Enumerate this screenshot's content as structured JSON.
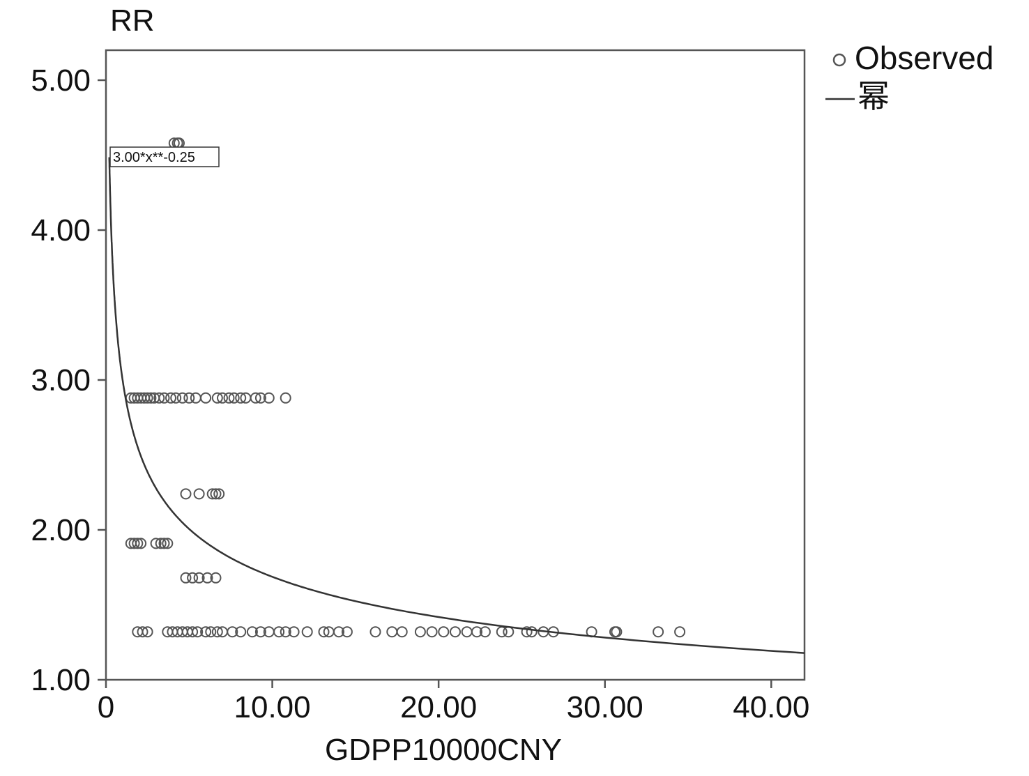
{
  "chart_data": {
    "type": "scatter",
    "title": "",
    "xlabel": "GDPP10000CNY",
    "ylabel": "RR",
    "xlim": [
      0,
      42
    ],
    "ylim": [
      1.0,
      5.2
    ],
    "x_ticks": [
      0,
      10,
      20,
      30,
      40
    ],
    "x_tick_labels": [
      "0",
      "10.00",
      "20.00",
      "30.00",
      "40.00"
    ],
    "y_ticks": [
      1,
      2,
      3,
      4,
      5
    ],
    "y_tick_labels": [
      "1.00",
      "2.00",
      "3.00",
      "4.00",
      "5.00"
    ],
    "grid": false,
    "legend_position": "outside-top-right",
    "legend": [
      {
        "label": "Observed",
        "marker": "circle"
      },
      {
        "label": "幂",
        "marker": "line"
      }
    ],
    "annotation": "3.00*x**-0.25",
    "fit": {
      "a": 3.0,
      "b": -0.25,
      "x_range": [
        0.2,
        42
      ]
    },
    "colors": {
      "marker": "#555555",
      "curve": "#333333",
      "frame": "#555555"
    },
    "series": [
      {
        "name": "Observed",
        "points": [
          [
            4.1,
            4.58
          ],
          [
            4.3,
            4.58
          ],
          [
            4.4,
            4.58
          ],
          [
            1.5,
            2.88
          ],
          [
            1.7,
            2.88
          ],
          [
            1.9,
            2.88
          ],
          [
            2.1,
            2.88
          ],
          [
            2.3,
            2.88
          ],
          [
            2.5,
            2.88
          ],
          [
            2.7,
            2.88
          ],
          [
            2.9,
            2.88
          ],
          [
            3.2,
            2.88
          ],
          [
            3.5,
            2.88
          ],
          [
            3.9,
            2.88
          ],
          [
            4.2,
            2.88
          ],
          [
            4.6,
            2.88
          ],
          [
            5.0,
            2.88
          ],
          [
            5.4,
            2.88
          ],
          [
            6.0,
            2.88
          ],
          [
            6.7,
            2.88
          ],
          [
            7.0,
            2.88
          ],
          [
            7.4,
            2.88
          ],
          [
            7.7,
            2.88
          ],
          [
            8.1,
            2.88
          ],
          [
            8.4,
            2.88
          ],
          [
            9.0,
            2.88
          ],
          [
            9.3,
            2.88
          ],
          [
            9.8,
            2.88
          ],
          [
            10.8,
            2.88
          ],
          [
            4.8,
            2.24
          ],
          [
            5.6,
            2.24
          ],
          [
            6.4,
            2.24
          ],
          [
            6.6,
            2.24
          ],
          [
            6.8,
            2.24
          ],
          [
            1.5,
            1.91
          ],
          [
            1.7,
            1.91
          ],
          [
            1.9,
            1.91
          ],
          [
            2.1,
            1.91
          ],
          [
            3.0,
            1.91
          ],
          [
            3.3,
            1.91
          ],
          [
            3.5,
            1.91
          ],
          [
            3.7,
            1.91
          ],
          [
            4.8,
            1.68
          ],
          [
            5.2,
            1.68
          ],
          [
            5.6,
            1.68
          ],
          [
            6.1,
            1.68
          ],
          [
            6.6,
            1.68
          ],
          [
            1.9,
            1.32
          ],
          [
            2.2,
            1.32
          ],
          [
            2.5,
            1.32
          ],
          [
            3.7,
            1.32
          ],
          [
            4.0,
            1.32
          ],
          [
            4.3,
            1.32
          ],
          [
            4.6,
            1.32
          ],
          [
            4.9,
            1.32
          ],
          [
            5.2,
            1.32
          ],
          [
            5.5,
            1.32
          ],
          [
            6.0,
            1.32
          ],
          [
            6.3,
            1.32
          ],
          [
            6.7,
            1.32
          ],
          [
            7.0,
            1.32
          ],
          [
            7.6,
            1.32
          ],
          [
            8.1,
            1.32
          ],
          [
            8.8,
            1.32
          ],
          [
            9.3,
            1.32
          ],
          [
            9.8,
            1.32
          ],
          [
            10.4,
            1.32
          ],
          [
            10.8,
            1.32
          ],
          [
            11.3,
            1.32
          ],
          [
            12.1,
            1.32
          ],
          [
            13.1,
            1.32
          ],
          [
            13.4,
            1.32
          ],
          [
            14.0,
            1.32
          ],
          [
            14.5,
            1.32
          ],
          [
            16.2,
            1.32
          ],
          [
            17.2,
            1.32
          ],
          [
            17.8,
            1.32
          ],
          [
            18.9,
            1.32
          ],
          [
            19.6,
            1.32
          ],
          [
            20.3,
            1.32
          ],
          [
            21.0,
            1.32
          ],
          [
            21.7,
            1.32
          ],
          [
            22.3,
            1.32
          ],
          [
            22.8,
            1.32
          ],
          [
            23.8,
            1.32
          ],
          [
            24.2,
            1.32
          ],
          [
            25.3,
            1.32
          ],
          [
            25.6,
            1.32
          ],
          [
            26.3,
            1.32
          ],
          [
            26.9,
            1.32
          ],
          [
            29.2,
            1.32
          ],
          [
            30.6,
            1.32
          ],
          [
            30.7,
            1.32
          ],
          [
            33.2,
            1.32
          ],
          [
            34.5,
            1.32
          ]
        ]
      }
    ]
  }
}
